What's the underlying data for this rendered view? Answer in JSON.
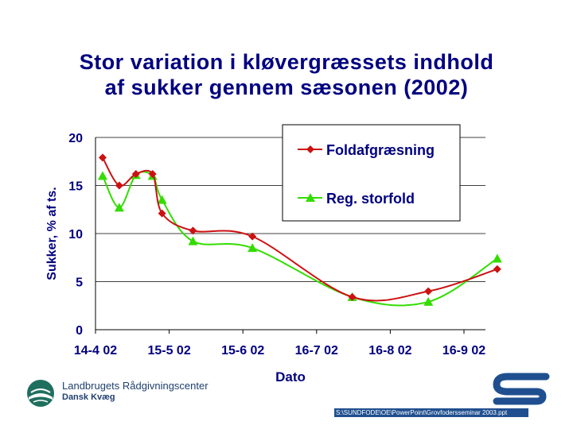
{
  "slide": {
    "title_line1": "Stor variation i kløvergræssets indhold",
    "title_line2": "af sukker gennem sæsonen (2002)"
  },
  "footer": {
    "org": "Landbrugets Rådgivningscenter",
    "dept": "Dansk Kvæg",
    "filepath": "S:\\SUNDFODE\\OE\\PowerPoint\\Grovfodersseminar 2003.ppt"
  },
  "colors": {
    "title": "#000080",
    "series_red": "#CC1111",
    "series_green": "#33DD00",
    "logo_blue": "#1F4F8F"
  },
  "chart_data": {
    "type": "line",
    "ylabel": "Sukker, % af ts.",
    "xlabel": "Dato",
    "ylim": [
      0,
      20
    ],
    "yticks": [
      "0",
      "5",
      "10",
      "15",
      "20"
    ],
    "xticks": [
      "14-4 02",
      "15-5 02",
      "15-6 02",
      "16-7 02",
      "16-8 02",
      "16-9 02"
    ],
    "xtick_days": [
      0,
      31,
      62,
      93,
      124,
      155
    ],
    "grid": true,
    "legend_position": "top-right",
    "series": [
      {
        "name": "Foldafgræsning",
        "color": "#CC1111",
        "marker": "diamond",
        "x": [
          3,
          10,
          17,
          24,
          28,
          41,
          66,
          108,
          140,
          169
        ],
        "y": [
          17.9,
          15.0,
          16.2,
          16.2,
          12.1,
          10.3,
          9.7,
          3.4,
          4.0,
          6.3
        ]
      },
      {
        "name": "Reg. storfold",
        "color": "#33DD00",
        "marker": "triangle",
        "x": [
          3,
          10,
          17,
          24,
          28,
          41,
          66,
          108,
          140,
          169
        ],
        "y": [
          16.0,
          12.7,
          16.1,
          16.0,
          13.5,
          9.2,
          8.5,
          3.4,
          2.9,
          7.4
        ]
      }
    ]
  }
}
